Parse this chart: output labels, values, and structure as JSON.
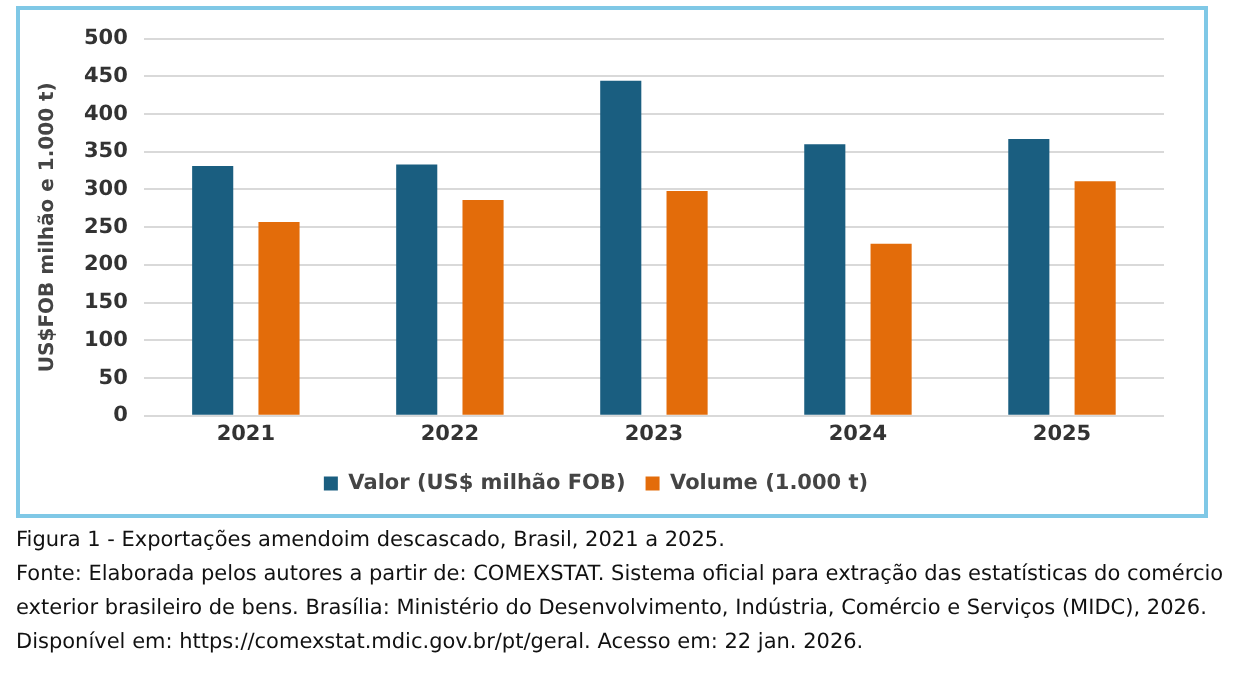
{
  "chart_data": {
    "type": "bar",
    "ylabel": "US$FOB milhão e 1.000 t)",
    "categories": [
      "2021",
      "2022",
      "2023",
      "2024",
      "2025"
    ],
    "series": [
      {
        "name": "Valor (US$ milhão FOB)",
        "color": "#1a5e80",
        "values": [
          331,
          333,
          444,
          360,
          367
        ]
      },
      {
        "name": "Volume (1.000 t)",
        "color": "#e36c0a",
        "values": [
          257,
          286,
          298,
          228,
          311
        ]
      }
    ],
    "ylim": [
      0,
      500
    ],
    "yticks": [
      0,
      50,
      100,
      150,
      200,
      250,
      300,
      350,
      400,
      450,
      500
    ],
    "grid": "y",
    "legend": "bottom",
    "annotations": [
      "Figura 1 - Exportações amendoim descascado, Brasil, 2021 a 2025.",
      "Fonte: Elaborada pelos autores a partir de: COMEXSTAT. Sistema oficial para extração das estatísticas do comércio exterior brasileiro de bens. Brasília: Ministério do Desenvolvimento, Indústria, Comércio e Serviços (MIDC), 2026. Disponível em: https://comexstat.mdic.gov.br/pt/geral. Acesso em: 22 jan. 2026."
    ]
  }
}
